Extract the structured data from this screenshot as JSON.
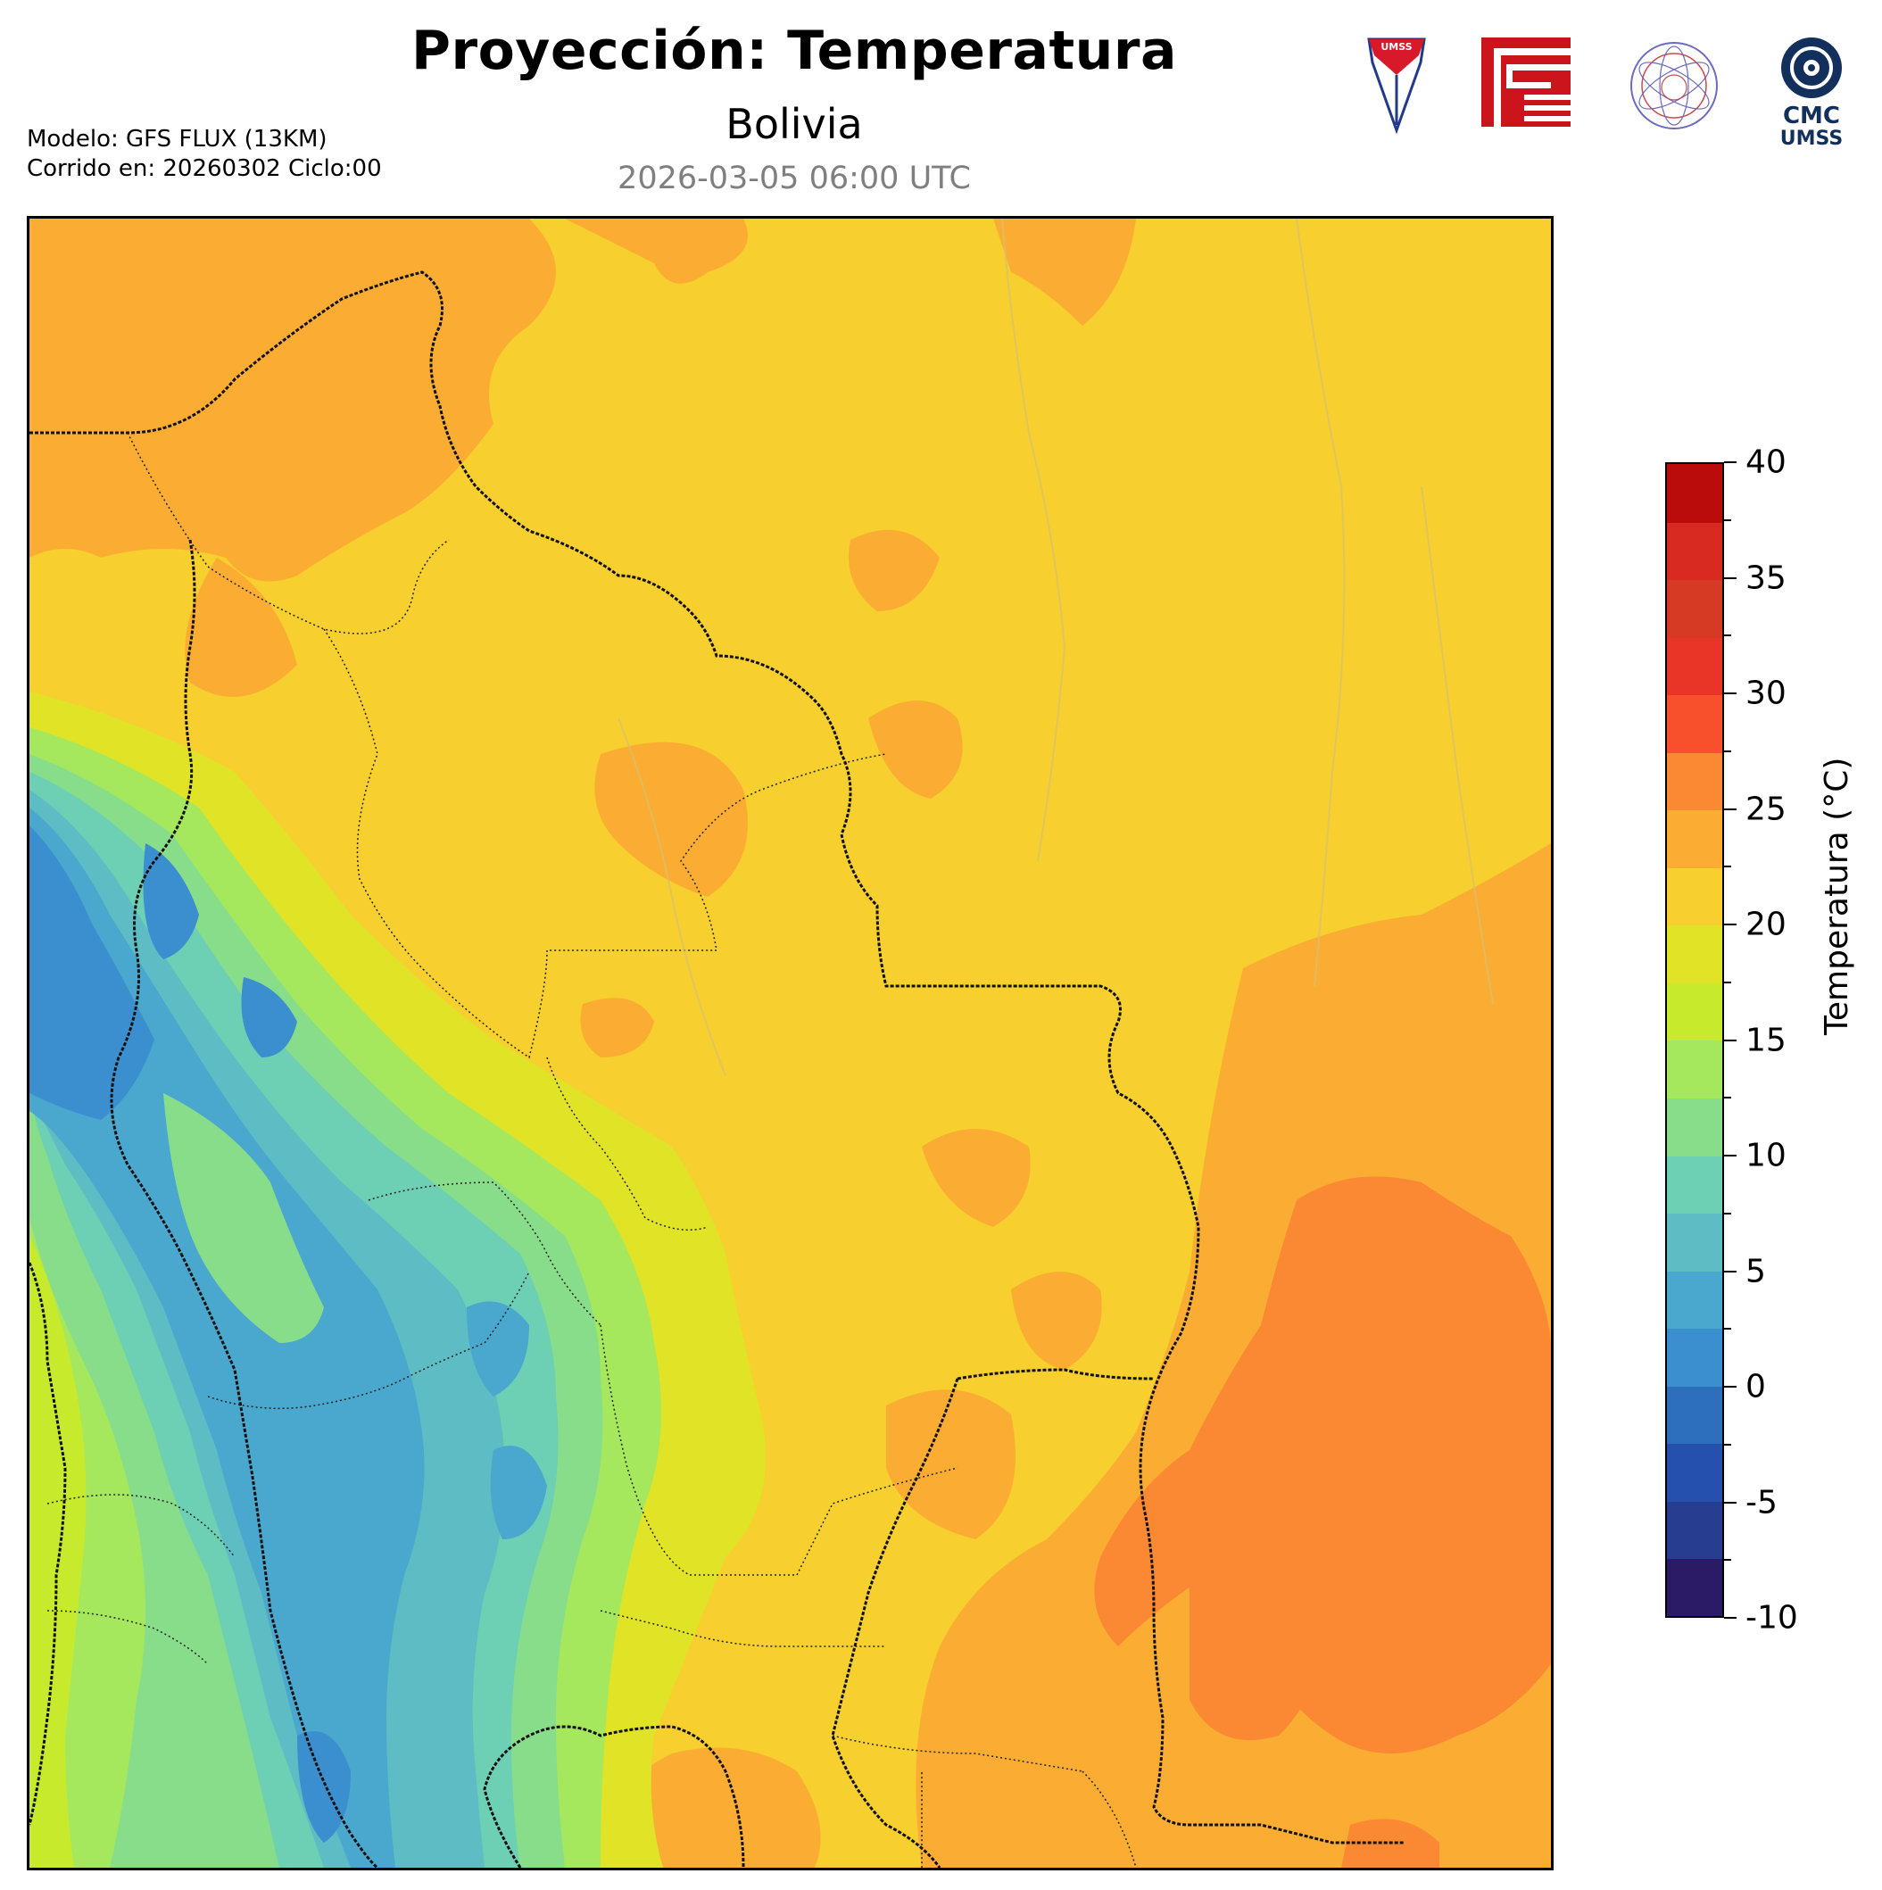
{
  "header": {
    "title": "Proyección: Temperatura",
    "subtitle": "Bolivia",
    "datetime": "2026-03-05 06:00 UTC",
    "model_line": "Modelo: GFS FLUX (13KM)",
    "run_line": "Corrido en: 20260302 Ciclo:00"
  },
  "logos": {
    "umss_text": "UMSS",
    "cmc_text": "CMC",
    "cmc_sub": "UMSS"
  },
  "colorbar": {
    "label": "Temperatura (°C)",
    "min": -10,
    "max": 40,
    "step": 2.5,
    "major_ticks": [
      "40",
      "35",
      "30",
      "25",
      "20",
      "15",
      "10",
      "5",
      "0",
      "-5",
      "-10"
    ],
    "colors": [
      "#2b1a66",
      "#273d8f",
      "#2650ad",
      "#2d6fbd",
      "#3c8fcf",
      "#4aa7ce",
      "#5dbcc4",
      "#6dcfb3",
      "#88dd8b",
      "#a6e85d",
      "#c8ea2d",
      "#e1e326",
      "#f7cf2e",
      "#fbad33",
      "#fb8832",
      "#f8502c",
      "#e93527",
      "#d63a24",
      "#d92a22",
      "#b90c0b"
    ]
  },
  "map": {
    "region": "Bolivia",
    "background_color": "#f7cf2e",
    "border_color": "#000000"
  }
}
